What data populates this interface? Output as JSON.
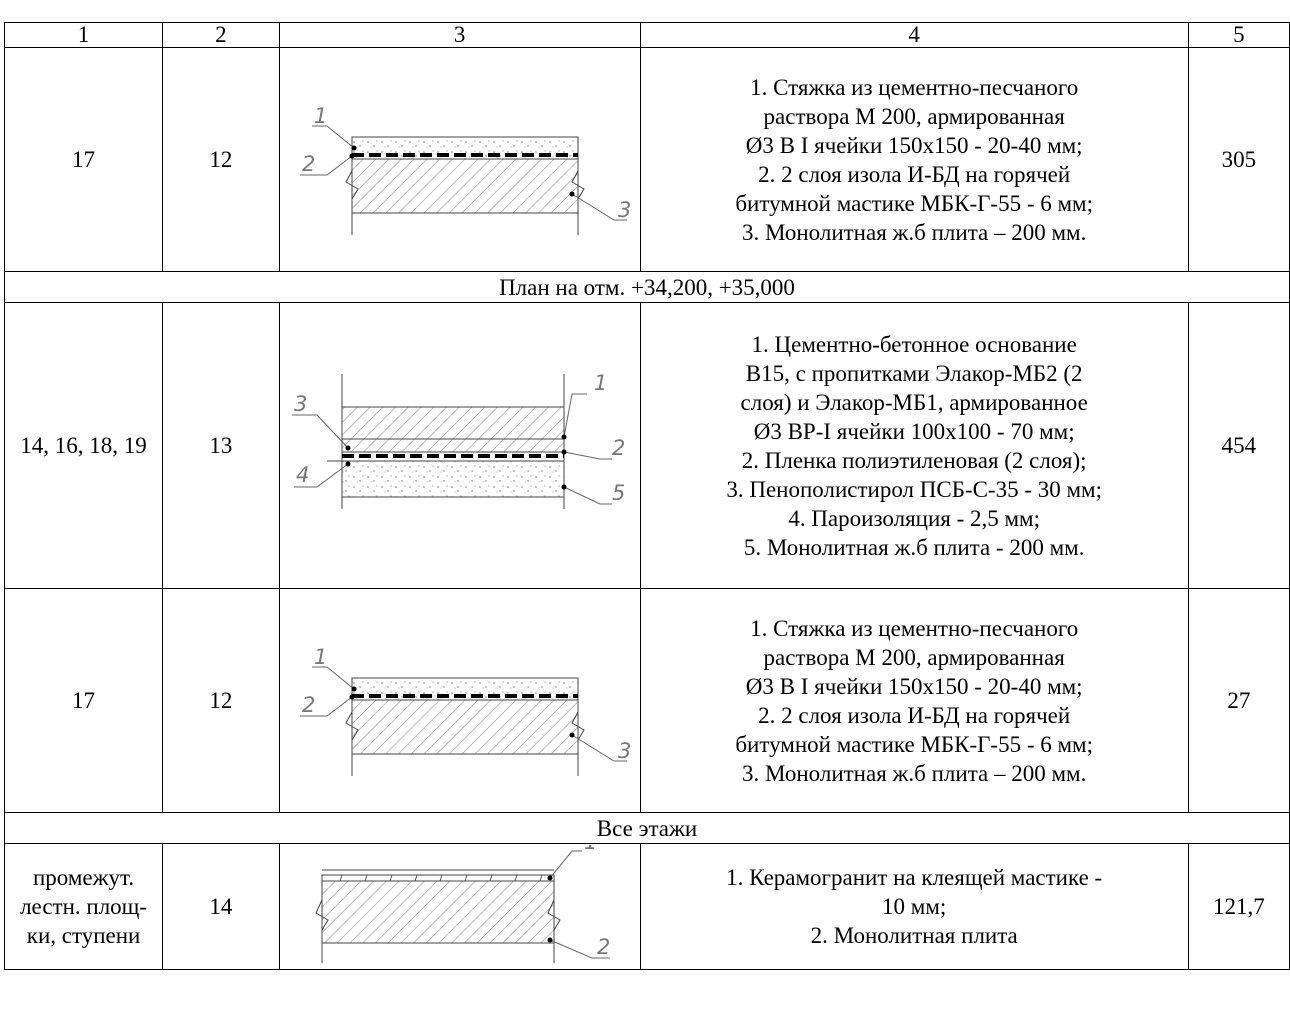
{
  "header": [
    "1",
    "2",
    "3",
    "4",
    "5"
  ],
  "rows": [
    {
      "col1": "17",
      "col2": "12",
      "layers": [
        "1. Стяжка из цементно-песчаного",
        "раствора М 200, армированная",
        "Ø3 В I ячейки 150х150 - 20-40 мм;",
        "2. 2 слоя изола И-БД на горячей",
        "битумной мастике МБК-Г-55 - 6 мм;",
        "3. Монолитная ж.б плита – 200 мм."
      ],
      "area": "305",
      "sketch_labels": [
        "1",
        "2",
        "3"
      ]
    },
    {
      "col1": "14, 16, 18, 19",
      "col2": "13",
      "layers": [
        "1. Цементно-бетонное основание",
        "В15, с пропитками Элакор-МБ2 (2",
        "слоя) и Элакор-МБ1, армированное",
        "Ø3 ВР-I ячейки 100х100 - 70 мм;",
        "2. Пленка полиэтиленовая (2 слоя);",
        "3. Пенополистирол ПСБ-С-35 - 30 мм;",
        "4. Пароизоляция - 2,5 мм;",
        "5. Монолитная ж.б плита - 200 мм."
      ],
      "area": "454",
      "sketch_labels": [
        "1",
        "2",
        "3",
        "4",
        "5"
      ]
    },
    {
      "col1": "17",
      "col2": "12",
      "layers": [
        "1. Стяжка из цементно-песчаного",
        "раствора М 200, армированная",
        "Ø3 В I ячейки 150х150 - 20-40 мм;",
        "2. 2 слоя изола И-БД на горячей",
        "битумной мастике МБК-Г-55 - 6 мм;",
        "3. Монолитная ж.б плита – 200 мм."
      ],
      "area": "27",
      "sketch_labels": [
        "1",
        "2",
        "3"
      ]
    },
    {
      "col1": "промежут. лестн. площ-ки, ступени",
      "col2": "14",
      "layers": [
        "1. Керамогранит на клеящей мастике -",
        "10 мм;",
        "2.  Монолитная плита"
      ],
      "area": "121,7",
      "sketch_labels": [
        "1",
        "2"
      ]
    }
  ],
  "sections": {
    "plan_level": "План на отм. +34,200, +35,000",
    "all_floors": "Все этажи"
  }
}
